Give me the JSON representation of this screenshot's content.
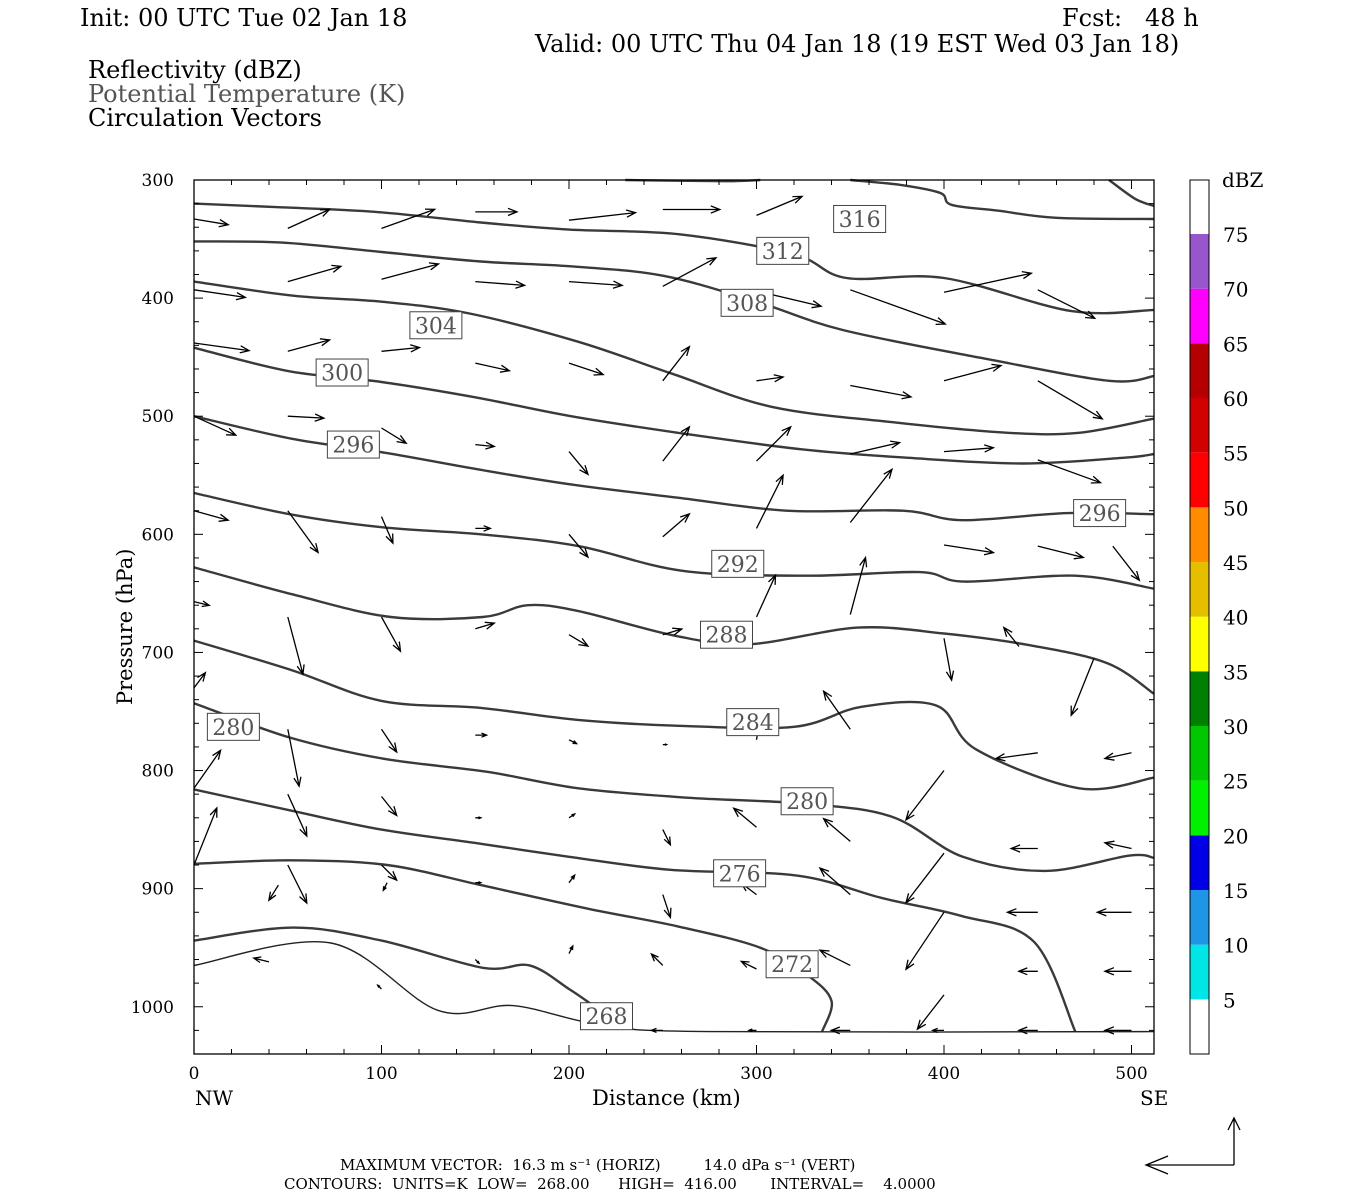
{
  "header": {
    "init": "Init: 00 UTC Tue 02 Jan 18",
    "fcst": "Fcst:   48 h",
    "valid": "Valid: 00 UTC Thu 04 Jan 18 (19 EST Wed 03 Jan 18)",
    "field1": "Reflectivity (dBZ)",
    "field2": "Potential Temperature (K)",
    "field3": "Circulation Vectors"
  },
  "colorbar": {
    "title": "dBZ",
    "labels": [
      "5",
      "10",
      "15",
      "20",
      "25",
      "30",
      "35",
      "40",
      "45",
      "50",
      "55",
      "60",
      "65",
      "70",
      "75"
    ],
    "colors": [
      "#ffffff",
      "#00e5e5",
      "#1e96e6",
      "#0000e6",
      "#00f000",
      "#00c800",
      "#008000",
      "#ffff00",
      "#e6be00",
      "#ff8c00",
      "#ff0000",
      "#d20000",
      "#b40000",
      "#ff00ff",
      "#9955cc",
      "#ffffff"
    ]
  },
  "footer": {
    "max_vector": "MAXIMUM VECTOR:  16.3 m s⁻¹ (HORIZ)         14.0 dPa s⁻¹ (VERT)",
    "contours": "CONTOURS:  UNITS=K  LOW=  268.00      HIGH=  416.00       INTERVAL=    4.0000"
  },
  "chart_data": {
    "type": "line",
    "title": "",
    "xlabel": "Distance (km)",
    "ylabel": "Pressure (hPa)",
    "xlim": [
      0,
      512
    ],
    "ylim": [
      1040,
      300
    ],
    "x_ticks": [
      "0",
      "100",
      "200",
      "300",
      "400",
      "500"
    ],
    "y_ticks": [
      "300",
      "400",
      "500",
      "600",
      "700",
      "800",
      "900",
      "1000"
    ],
    "x_end_labels": {
      "left": "NW",
      "right": "SE"
    },
    "contour_labels": [
      {
        "text": "316",
        "x": 355,
        "p": 333
      },
      {
        "text": "312",
        "x": 314,
        "p": 360
      },
      {
        "text": "308",
        "x": 295,
        "p": 404
      },
      {
        "text": "304",
        "x": 129,
        "p": 423
      },
      {
        "text": "300",
        "x": 79,
        "p": 463
      },
      {
        "text": "296",
        "x": 85,
        "p": 524
      },
      {
        "text": "296",
        "x": 483,
        "p": 582
      },
      {
        "text": "292",
        "x": 290,
        "p": 625
      },
      {
        "text": "288",
        "x": 284,
        "p": 685
      },
      {
        "text": "284",
        "x": 298,
        "p": 759
      },
      {
        "text": "280",
        "x": 21,
        "p": 763
      },
      {
        "text": "280",
        "x": 327,
        "p": 826
      },
      {
        "text": "276",
        "x": 291,
        "p": 887
      },
      {
        "text": "272",
        "x": 319,
        "p": 964
      },
      {
        "text": "268",
        "x": 220,
        "p": 1008
      }
    ],
    "series": [
      {
        "name": "316",
        "points": [
          [
            230,
            300
          ],
          [
            283,
            301
          ],
          [
            302,
            300
          ]
        ]
      },
      {
        "name": "316b",
        "points": [
          [
            350,
            300
          ],
          [
            376,
            304
          ],
          [
            398,
            311
          ],
          [
            404,
            321
          ],
          [
            429,
            326
          ],
          [
            460,
            332
          ],
          [
            512,
            333
          ]
        ]
      },
      {
        "name": "316c",
        "points": [
          [
            488,
            300
          ],
          [
            502,
            316
          ],
          [
            512,
            322
          ]
        ]
      },
      {
        "name": "312",
        "points": [
          [
            0,
            320
          ],
          [
            45,
            323
          ],
          [
            97,
            327
          ],
          [
            153,
            336
          ],
          [
            200,
            342
          ],
          [
            259,
            346
          ],
          [
            320,
            363
          ],
          [
            348,
            383
          ],
          [
            400,
            383
          ],
          [
            468,
            411
          ],
          [
            512,
            410
          ]
        ]
      },
      {
        "name": "308",
        "points": [
          [
            0,
            352
          ],
          [
            47,
            353
          ],
          [
            100,
            361
          ],
          [
            153,
            369
          ],
          [
            200,
            373
          ],
          [
            250,
            381
          ],
          [
            300,
            403
          ],
          [
            346,
            427
          ],
          [
            421,
            451
          ],
          [
            488,
            470
          ],
          [
            512,
            466
          ]
        ]
      },
      {
        "name": "304",
        "points": [
          [
            0,
            386
          ],
          [
            53,
            398
          ],
          [
            100,
            403
          ],
          [
            147,
            413
          ],
          [
            205,
            437
          ],
          [
            255,
            464
          ],
          [
            308,
            492
          ],
          [
            372,
            505
          ],
          [
            434,
            514
          ],
          [
            472,
            514
          ],
          [
            512,
            502
          ]
        ]
      },
      {
        "name": "300",
        "points": [
          [
            0,
            442
          ],
          [
            51,
            462
          ],
          [
            100,
            471
          ],
          [
            150,
            484
          ],
          [
            201,
            500
          ],
          [
            258,
            514
          ],
          [
            324,
            528
          ],
          [
            379,
            535
          ],
          [
            442,
            540
          ],
          [
            497,
            535
          ],
          [
            512,
            532
          ]
        ]
      },
      {
        "name": "296",
        "points": [
          [
            0,
            500
          ],
          [
            52,
            519
          ],
          [
            102,
            531
          ],
          [
            155,
            546
          ],
          [
            202,
            558
          ],
          [
            258,
            569
          ],
          [
            316,
            580
          ],
          [
            378,
            580
          ],
          [
            410,
            588
          ],
          [
            466,
            582
          ],
          [
            512,
            583
          ]
        ]
      },
      {
        "name": "292",
        "points": [
          [
            0,
            565
          ],
          [
            51,
            583
          ],
          [
            100,
            594
          ],
          [
            153,
            600
          ],
          [
            205,
            610
          ],
          [
            261,
            631
          ],
          [
            328,
            635
          ],
          [
            387,
            632
          ],
          [
            411,
            640
          ],
          [
            470,
            635
          ],
          [
            512,
            646
          ]
        ]
      },
      {
        "name": "288",
        "points": [
          [
            0,
            628
          ],
          [
            53,
            651
          ],
          [
            105,
            670
          ],
          [
            154,
            670
          ],
          [
            178,
            660
          ],
          [
            205,
            665
          ],
          [
            257,
            686
          ],
          [
            296,
            693
          ],
          [
            354,
            679
          ],
          [
            400,
            684
          ],
          [
            446,
            694
          ],
          [
            487,
            709
          ],
          [
            512,
            735
          ]
        ]
      },
      {
        "name": "284",
        "points": [
          [
            0,
            690
          ],
          [
            52,
            715
          ],
          [
            100,
            741
          ],
          [
            153,
            747
          ],
          [
            204,
            757
          ],
          [
            257,
            762
          ],
          [
            320,
            763
          ],
          [
            356,
            746
          ],
          [
            396,
            745
          ],
          [
            417,
            782
          ],
          [
            472,
            815
          ],
          [
            512,
            806
          ]
        ]
      },
      {
        "name": "280",
        "points": [
          [
            0,
            743
          ],
          [
            51,
            772
          ],
          [
            101,
            790
          ],
          [
            156,
            801
          ],
          [
            205,
            815
          ],
          [
            263,
            823
          ],
          [
            325,
            828
          ],
          [
            372,
            839
          ],
          [
            410,
            873
          ],
          [
            454,
            885
          ],
          [
            499,
            872
          ],
          [
            512,
            874
          ]
        ]
      },
      {
        "name": "276",
        "points": [
          [
            0,
            816
          ],
          [
            52,
            834
          ],
          [
            100,
            850
          ],
          [
            153,
            862
          ],
          [
            200,
            873
          ],
          [
            254,
            884
          ],
          [
            322,
            889
          ],
          [
            367,
            908
          ],
          [
            409,
            923
          ],
          [
            448,
            945
          ],
          [
            470,
            1021
          ]
        ]
      },
      {
        "name": "272",
        "points": [
          [
            0,
            879
          ],
          [
            51,
            876
          ],
          [
            103,
            880
          ],
          [
            153,
            897
          ],
          [
            210,
            917
          ],
          [
            258,
            932
          ],
          [
            302,
            950
          ],
          [
            327,
            973
          ],
          [
            340,
            995
          ],
          [
            335,
            1021
          ]
        ]
      },
      {
        "name": "268",
        "points": [
          [
            0,
            944
          ],
          [
            53,
            933
          ],
          [
            100,
            944
          ],
          [
            154,
            967
          ],
          [
            179,
            965
          ],
          [
            200,
            985
          ],
          [
            212,
            998
          ]
        ]
      },
      {
        "name": "surface",
        "points": [
          [
            0,
            965
          ],
          [
            73,
            946
          ],
          [
            130,
            1003
          ],
          [
            170,
            999
          ],
          [
            216,
            1015
          ],
          [
            274,
            1021
          ],
          [
            512,
            1021
          ]
        ]
      }
    ]
  }
}
